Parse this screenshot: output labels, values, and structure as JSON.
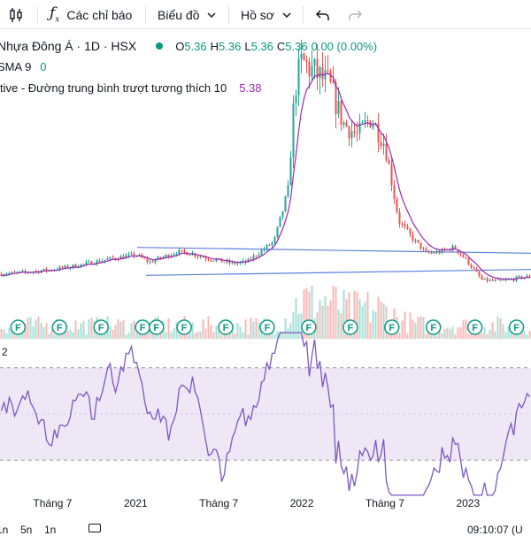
{
  "toolbar": {
    "indicators_label": "Các chỉ báo",
    "chart_type_label": "Biểu đồ",
    "profile_label": "Hồ sơ"
  },
  "legend": {
    "symbol": "Nhựa Đông Á · 1D · HSX",
    "open_label": "O",
    "open_value": "5.36",
    "high_label": "H",
    "high_value": "5.36",
    "low_label": "L",
    "low_value": "5.36",
    "close_label": "C",
    "close_value": "5.36",
    "change_text": "0.00 (0.00%)",
    "sma_label": "SMA 9",
    "sma_value": "0",
    "adaptive_label": "tive - Đường trung bình trượt tương thích 10",
    "adaptive_value": "5.38"
  },
  "oscillator": {
    "label": "2"
  },
  "bottom": {
    "left_buttons": [
      "1n",
      "5n",
      "1n"
    ],
    "time": "09:10:07 (U"
  },
  "colors": {
    "up": "#26a69a",
    "down": "#ef5350",
    "trendline": "#5b7fe0",
    "adaptive_ma": "#9c27b0",
    "osc_line": "#7e57c2",
    "osc_band": "#ede7f6",
    "earnings_badge": "#089981"
  },
  "chart_data": {
    "type": "candlestick",
    "x_tick_labels": [
      "Tháng 7",
      "2021",
      "Tháng 7",
      "2022",
      "Tháng 7",
      "2023"
    ],
    "x_tick_dates": [
      "2020-07",
      "2021-01",
      "2021-07",
      "2022-01",
      "2022-07",
      "2023-01"
    ],
    "x_range": [
      "2020-03",
      "2023-05"
    ],
    "y_range": [
      2.5,
      11.5
    ],
    "price_path": [
      [
        "2020-03",
        3.2
      ],
      [
        "2020-05",
        3.25
      ],
      [
        "2020-07",
        3.35
      ],
      [
        "2020-09",
        3.5
      ],
      [
        "2020-11",
        3.7
      ],
      [
        "2021-01",
        3.85
      ],
      [
        "2021-02",
        3.6
      ],
      [
        "2021-04",
        3.95
      ],
      [
        "2021-05",
        3.9
      ],
      [
        "2021-06",
        3.75
      ],
      [
        "2021-08",
        3.55
      ],
      [
        "2021-09",
        3.6
      ],
      [
        "2021-10",
        3.95
      ],
      [
        "2021-11",
        4.3
      ],
      [
        "2021-12",
        6.0
      ],
      [
        "2021-12",
        9.5
      ],
      [
        "2022-01",
        10.4
      ],
      [
        "2022-02",
        10.0
      ],
      [
        "2022-03",
        9.6
      ],
      [
        "2022-04",
        8.3
      ],
      [
        "2022-05",
        7.9
      ],
      [
        "2022-06",
        8.5
      ],
      [
        "2022-07",
        7.6
      ],
      [
        "2022-08",
        5.0
      ],
      [
        "2022-09",
        4.4
      ],
      [
        "2022-10",
        3.9
      ],
      [
        "2022-11",
        3.95
      ],
      [
        "2022-12",
        4.1
      ],
      [
        "2023-01",
        3.6
      ],
      [
        "2023-02",
        3.0
      ],
      [
        "2023-03",
        2.95
      ],
      [
        "2023-04",
        3.0
      ],
      [
        "2023-05",
        3.1
      ]
    ],
    "adaptive_ma": "5.38",
    "earnings_markers": [
      "2020-04",
      "2020-07",
      "2020-10",
      "2021-01",
      "2021-02",
      "2021-04",
      "2021-07",
      "2021-10",
      "2022-01",
      "2022-04",
      "2022-07",
      "2022-10",
      "2023-01",
      "2023-04"
    ],
    "oscillator_band": [
      20,
      80
    ]
  }
}
